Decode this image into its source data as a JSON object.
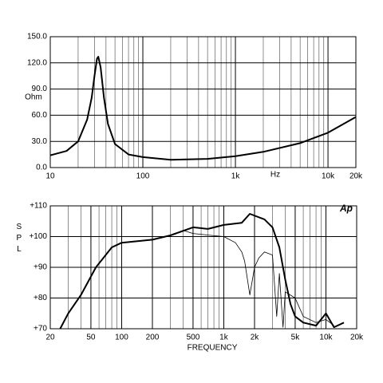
{
  "chart_data": [
    {
      "type": "line",
      "ylabel": "Ohm",
      "xlabel": "Hz",
      "xscale": "log",
      "grid": true,
      "xlim": [
        10,
        20000
      ],
      "ylim": [
        0,
        150
      ],
      "xticks": [
        10,
        100,
        {
          "value": 1000,
          "label": "1k"
        },
        {
          "value": 10000,
          "label": "10k"
        },
        {
          "value": 20000,
          "label": "20k"
        }
      ],
      "xminorticks": [
        20,
        30,
        40,
        50,
        60,
        70,
        80,
        90,
        200,
        300,
        400,
        500,
        600,
        700,
        800,
        900,
        2000,
        3000,
        4000,
        5000,
        6000,
        7000,
        8000,
        9000
      ],
      "yticks": [
        {
          "value": 0,
          "label": "0.0"
        },
        {
          "value": 30,
          "label": "30.0"
        },
        {
          "value": 60,
          "label": "60.0"
        },
        {
          "value": 90,
          "label": "90.0"
        },
        {
          "value": 120,
          "label": "120.0"
        },
        {
          "value": 150,
          "label": "150.0"
        }
      ],
      "series": [
        {
          "color": "#000000",
          "width": 2,
          "x": [
            10,
            15,
            20,
            25,
            28,
            30,
            32,
            33,
            35,
            38,
            42,
            50,
            70,
            100,
            200,
            500,
            1000,
            2000,
            5000,
            10000,
            20000
          ],
          "values": [
            14,
            19,
            30,
            55,
            80,
            105,
            125,
            127,
            115,
            80,
            50,
            27,
            15,
            12,
            9,
            10,
            13,
            18,
            28,
            40,
            58
          ]
        }
      ]
    },
    {
      "type": "line",
      "ylabel": "SPL",
      "xlabel": "FREQUENCY",
      "annotation": "Ap",
      "xscale": "log",
      "grid": true,
      "xlim": [
        20,
        20000
      ],
      "ylim": [
        70,
        110
      ],
      "xticks": [
        20,
        50,
        100,
        200,
        500,
        {
          "value": 1000,
          "label": "1k"
        },
        {
          "value": 2000,
          "label": "2k"
        },
        {
          "value": 5000,
          "label": "5k"
        },
        {
          "value": 10000,
          "label": "10k"
        },
        {
          "value": 20000,
          "label": "20k"
        }
      ],
      "xminorticks": [
        30,
        40,
        60,
        70,
        80,
        90,
        300,
        400,
        600,
        700,
        800,
        900,
        3000,
        4000,
        6000,
        7000,
        8000,
        9000
      ],
      "yticks": [
        {
          "value": 70,
          "label": "+70"
        },
        {
          "value": 80,
          "label": "+80"
        },
        {
          "value": 90,
          "label": "+90"
        },
        {
          "value": 100,
          "label": "+100"
        },
        {
          "value": 110,
          "label": "+110"
        }
      ],
      "series": [
        {
          "color": "#000000",
          "width": 2,
          "x": [
            25,
            30,
            40,
            56,
            80,
            100,
            200,
            300,
            500,
            700,
            1000,
            1500,
            1800,
            2500,
            3000,
            3500,
            4000,
            4500,
            5000,
            6000,
            8000,
            10000,
            12000,
            15000
          ],
          "values": [
            70,
            75,
            81,
            90,
            96.5,
            98,
            99,
            100.4,
            103,
            102.5,
            103.8,
            104.5,
            107.4,
            105.6,
            103,
            96.5,
            86,
            78,
            74,
            72,
            71,
            75,
            70.5,
            72
          ]
        },
        {
          "color": "#000000",
          "width": 0.8,
          "x": [
            25,
            30,
            40,
            56,
            80,
            100,
            200,
            300,
            400,
            500,
            700,
            1000,
            1300,
            1500,
            1600,
            1800,
            2000,
            2200,
            2500,
            3000,
            3300,
            3500,
            3800,
            4000,
            5000,
            6000,
            8000,
            10000,
            12000
          ],
          "values": [
            70,
            75,
            81,
            90,
            96.5,
            98,
            99,
            100.4,
            102,
            101,
            100.5,
            100,
            98,
            95,
            92,
            81,
            90,
            93,
            95,
            94,
            74,
            88,
            70.5,
            82,
            80,
            74,
            72,
            73,
            71
          ]
        }
      ]
    }
  ]
}
